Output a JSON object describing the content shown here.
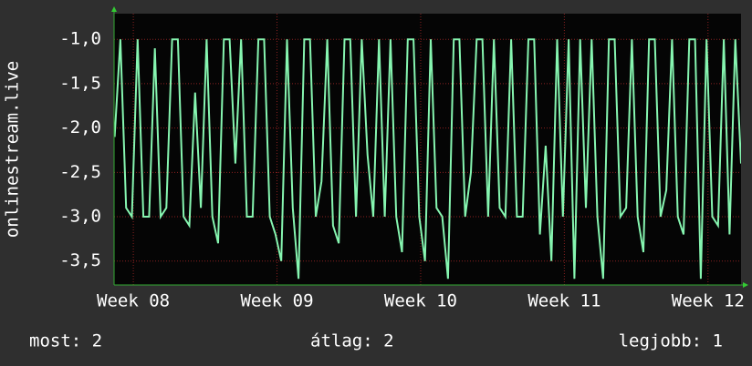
{
  "chart_data": {
    "type": "line",
    "y_label": "onlinestream.live",
    "footer": [
      "most: 2",
      "átlag: 2",
      "legjobb: 1"
    ],
    "grid": true,
    "xlim": [
      7.866,
      12.23
    ],
    "ylim": [
      -3.77,
      -0.71
    ],
    "xticks": [
      {
        "value": 8,
        "label": "Week 08"
      },
      {
        "value": 9,
        "label": "Week 09"
      },
      {
        "value": 10,
        "label": "Week 10"
      },
      {
        "value": 11,
        "label": "Week 11"
      },
      {
        "value": 12,
        "label": "Week 12"
      }
    ],
    "yticks": [
      {
        "value": -1.0,
        "label": "-1,0"
      },
      {
        "value": -1.5,
        "label": "-1,5"
      },
      {
        "value": -2.0,
        "label": "-2,0"
      },
      {
        "value": -2.5,
        "label": "-2,5"
      },
      {
        "value": -3.0,
        "label": "-3,0"
      },
      {
        "value": -3.5,
        "label": "-3,5"
      }
    ],
    "series": [
      {
        "color": "#86f5b0",
        "x": [
          7.87,
          7.91,
          7.95,
          7.99,
          8.03,
          8.07,
          8.11,
          8.15,
          8.19,
          8.23,
          8.27,
          8.31,
          8.35,
          8.39,
          8.43,
          8.47,
          8.51,
          8.55,
          8.59,
          8.63,
          8.67,
          8.71,
          8.75,
          8.79,
          8.83,
          8.87,
          8.91,
          8.95,
          8.99,
          9.03,
          9.07,
          9.11,
          9.15,
          9.19,
          9.23,
          9.27,
          9.31,
          9.35,
          9.39,
          9.43,
          9.47,
          9.51,
          9.55,
          9.59,
          9.63,
          9.67,
          9.71,
          9.75,
          9.79,
          9.83,
          9.87,
          9.91,
          9.95,
          9.99,
          10.03,
          10.07,
          10.11,
          10.15,
          10.19,
          10.23,
          10.27,
          10.31,
          10.35,
          10.39,
          10.43,
          10.47,
          10.51,
          10.55,
          10.59,
          10.63,
          10.67,
          10.71,
          10.75,
          10.79,
          10.83,
          10.87,
          10.91,
          10.95,
          10.99,
          11.03,
          11.07,
          11.11,
          11.15,
          11.19,
          11.23,
          11.27,
          11.31,
          11.35,
          11.39,
          11.43,
          11.47,
          11.51,
          11.55,
          11.59,
          11.63,
          11.67,
          11.71,
          11.75,
          11.79,
          11.83,
          11.87,
          11.91,
          11.95,
          11.99,
          12.03,
          12.07,
          12.11,
          12.15,
          12.19,
          12.23
        ],
        "values": [
          -2.1,
          -1.0,
          -2.9,
          -3.0,
          -1.0,
          -3.0,
          -3.0,
          -1.1,
          -3.0,
          -2.9,
          -1.0,
          -1.0,
          -3.0,
          -3.1,
          -1.6,
          -2.9,
          -1.0,
          -3.0,
          -3.3,
          -1.0,
          -1.0,
          -2.4,
          -1.0,
          -3.0,
          -3.0,
          -1.0,
          -1.0,
          -3.0,
          -3.2,
          -3.5,
          -1.0,
          -2.9,
          -3.7,
          -1.0,
          -1.0,
          -3.0,
          -2.6,
          -1.0,
          -3.1,
          -3.3,
          -1.0,
          -1.0,
          -3.0,
          -1.0,
          -2.3,
          -3.0,
          -1.0,
          -3.0,
          -1.0,
          -3.0,
          -3.4,
          -1.0,
          -1.0,
          -3.0,
          -3.5,
          -1.0,
          -2.9,
          -3.0,
          -3.7,
          -1.0,
          -1.0,
          -3.0,
          -2.5,
          -1.0,
          -1.0,
          -3.0,
          -1.0,
          -2.9,
          -3.0,
          -1.0,
          -3.0,
          -3.0,
          -1.0,
          -1.0,
          -3.2,
          -2.2,
          -3.5,
          -1.0,
          -3.0,
          -1.0,
          -3.7,
          -1.0,
          -2.9,
          -1.0,
          -3.0,
          -3.7,
          -1.0,
          -1.0,
          -3.0,
          -2.9,
          -1.0,
          -3.0,
          -3.4,
          -1.0,
          -1.0,
          -3.0,
          -2.7,
          -1.0,
          -3.0,
          -3.2,
          -1.0,
          -1.0,
          -3.7,
          -1.0,
          -3.0,
          -3.1,
          -1.0,
          -3.2,
          -1.0,
          -2.4
        ]
      }
    ]
  }
}
